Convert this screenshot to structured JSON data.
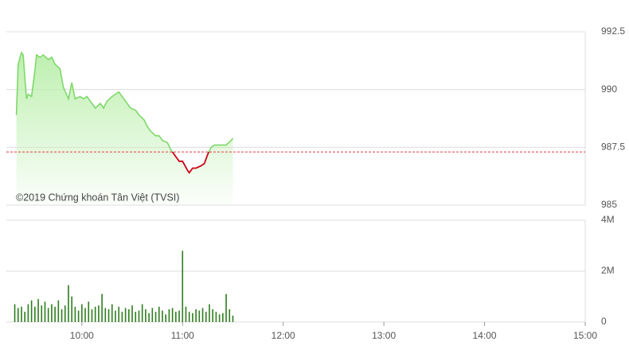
{
  "chart_data": [
    {
      "type": "area",
      "annotation": "©2019 Chứng khoán Tân Việt (TVSI)",
      "x": [
        561,
        562,
        564,
        565,
        567,
        568,
        570,
        572,
        573,
        575,
        577,
        580,
        582,
        584,
        587,
        589,
        592,
        594,
        596,
        599,
        601,
        603,
        606,
        608,
        611,
        613,
        615,
        618,
        620,
        622,
        625,
        627,
        629,
        632,
        634,
        637,
        639,
        641,
        644,
        646,
        648,
        651,
        653,
        656,
        658,
        660,
        663,
        664,
        666,
        668,
        671,
        673,
        675,
        677,
        679,
        682,
        684,
        686,
        689,
        690
      ],
      "values": [
        988.9,
        991.1,
        991.6,
        991.5,
        989.6,
        989.8,
        989.7,
        990.8,
        991.5,
        991.4,
        991.5,
        991.3,
        991.4,
        991.1,
        990.9,
        990.1,
        989.6,
        990.3,
        989.6,
        989.7,
        989.6,
        989.7,
        989.4,
        989.2,
        989.4,
        989.2,
        989.5,
        989.7,
        989.8,
        989.9,
        989.6,
        989.4,
        989.2,
        989.1,
        988.9,
        988.7,
        988.4,
        988.2,
        988.0,
        988.0,
        987.8,
        987.7,
        987.4,
        987.1,
        986.9,
        986.9,
        986.5,
        986.4,
        986.6,
        986.6,
        986.7,
        986.8,
        987.2,
        987.5,
        987.6,
        987.6,
        987.6,
        987.6,
        987.8,
        987.9
      ],
      "color": "#7ed86a",
      "fill_color": "#b6eea6",
      "below_color": "#d0021b",
      "reference": 987.3,
      "reference_color": "#e23b3b",
      "xlim": [
        555,
        900
      ],
      "ylim": [
        985,
        992.5
      ],
      "yticks": [
        985,
        987.5,
        990,
        992.5
      ],
      "grid": true
    },
    {
      "type": "bar",
      "x": [
        560,
        562,
        564,
        566,
        568,
        570,
        572,
        574,
        576,
        578,
        580,
        582,
        584,
        586,
        588,
        590,
        592,
        594,
        596,
        598,
        600,
        602,
        604,
        606,
        608,
        610,
        612,
        614,
        616,
        618,
        620,
        622,
        624,
        626,
        628,
        630,
        632,
        634,
        636,
        638,
        640,
        642,
        644,
        646,
        648,
        650,
        652,
        654,
        656,
        658,
        660,
        662,
        664,
        666,
        668,
        670,
        672,
        674,
        676,
        678,
        680,
        682,
        684,
        686,
        688,
        690
      ],
      "values": [
        700000,
        550000,
        600000,
        400000,
        700000,
        850000,
        600000,
        900000,
        650000,
        800000,
        550000,
        700000,
        600000,
        850000,
        500000,
        650000,
        1450000,
        1000000,
        600000,
        450000,
        700000,
        550000,
        800000,
        500000,
        600000,
        650000,
        1100000,
        550000,
        500000,
        700000,
        450000,
        600000,
        400000,
        550000,
        500000,
        650000,
        400000,
        450000,
        700000,
        500000,
        350000,
        550000,
        400000,
        600000,
        450000,
        300000,
        500000,
        550000,
        400000,
        450000,
        2800000,
        600000,
        400000,
        350000,
        500000,
        450000,
        550000,
        400000,
        700000,
        500000,
        400000,
        300000,
        350000,
        1100000,
        500000,
        250000
      ],
      "color": "#2e7d1e",
      "xlim": [
        555,
        900
      ],
      "xticks": [
        {
          "value": 600,
          "label": "10:00"
        },
        {
          "value": 660,
          "label": "11:00"
        },
        {
          "value": 720,
          "label": "12:00"
        },
        {
          "value": 780,
          "label": "13:00"
        },
        {
          "value": 840,
          "label": "14:00"
        },
        {
          "value": 900,
          "label": "15:00"
        }
      ],
      "ylim": [
        0,
        4000000
      ],
      "yticks": [
        0,
        {
          "value": 2000000,
          "label": "2M"
        },
        {
          "value": 4000000,
          "label": "4M"
        }
      ],
      "grid": true
    }
  ]
}
